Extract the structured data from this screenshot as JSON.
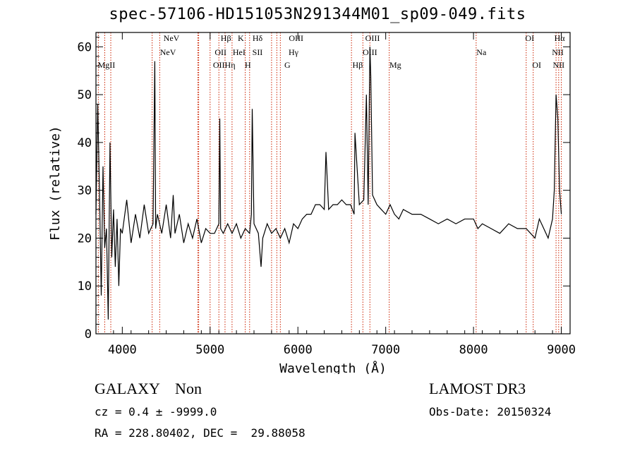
{
  "header": {
    "title": "spec-57106-HD151053N291344M01_sp09-049.fits"
  },
  "info": {
    "class_line": "GALAXY    Non",
    "survey": "LAMOST DR3",
    "cz_line": "cz = 0.4 ± -9999.0",
    "obs_date_line": "Obs-Date: 20150324",
    "radec_line": "RA = 228.80402, DEC =  29.88058"
  },
  "colors": {
    "line_marker": "#cc2200",
    "spectrum": "#000000"
  },
  "chart_data": {
    "type": "line",
    "title": "spec-57106-HD151053N291344M01_sp09-049.fits",
    "xlabel": "Wavelength (Å)",
    "ylabel": "Flux (relative)",
    "xlim": [
      3700,
      9100
    ],
    "ylim": [
      0,
      63
    ],
    "xticks": [
      4000,
      5000,
      6000,
      7000,
      8000,
      9000
    ],
    "yticks": [
      0,
      10,
      20,
      30,
      40,
      50,
      60
    ],
    "grid": false,
    "series": [
      {
        "x": [
          3700,
          3720,
          3740,
          3760,
          3780,
          3800,
          3820,
          3840,
          3860,
          3880,
          3900,
          3920,
          3940,
          3960,
          3980,
          4000,
          4050,
          4100,
          4150,
          4200,
          4250,
          4300,
          4350,
          4370,
          4380,
          4400,
          4450,
          4500,
          4550,
          4580,
          4600,
          4650,
          4700,
          4750,
          4800,
          4850,
          4900,
          4950,
          5000,
          5050,
          5100,
          5110,
          5120,
          5150,
          5200,
          5250,
          5300,
          5350,
          5400,
          5450,
          5470,
          5480,
          5500,
          5550,
          5580,
          5600,
          5650,
          5700,
          5750,
          5800,
          5850,
          5900,
          5950,
          6000,
          6050,
          6100,
          6150,
          6200,
          6250,
          6300,
          6320,
          6350,
          6400,
          6450,
          6500,
          6550,
          6600,
          6640,
          6650,
          6700,
          6750,
          6780,
          6800,
          6820,
          6830,
          6850,
          6900,
          6950,
          7000,
          7050,
          7100,
          7150,
          7200,
          7300,
          7400,
          7500,
          7600,
          7700,
          7800,
          7900,
          8000,
          8050,
          8100,
          8200,
          8300,
          8400,
          8500,
          8600,
          8650,
          8700,
          8750,
          8800,
          8850,
          8900,
          8920,
          8940,
          8960,
          8980,
          9000
        ],
        "y": [
          25,
          48,
          30,
          8,
          35,
          18,
          22,
          3,
          40,
          16,
          26,
          14,
          24,
          10,
          22,
          21,
          28,
          19,
          25,
          20,
          27,
          21,
          23,
          57,
          22,
          25,
          21,
          27,
          20,
          29,
          21,
          25,
          19,
          23,
          20,
          24,
          19,
          22,
          21,
          21,
          23,
          45,
          22,
          21,
          23,
          21,
          23,
          20,
          22,
          21,
          25,
          47,
          23,
          21,
          14,
          20,
          23,
          21,
          22,
          20,
          22,
          19,
          23,
          22,
          24,
          25,
          25,
          27,
          27,
          26,
          38,
          26,
          27,
          27,
          28,
          27,
          27,
          25,
          42,
          27,
          28,
          50,
          27,
          60,
          54,
          29,
          27,
          26,
          25,
          27,
          25,
          24,
          26,
          25,
          25,
          24,
          23,
          24,
          23,
          24,
          24,
          22,
          23,
          22,
          21,
          23,
          22,
          22,
          21,
          20,
          24,
          22,
          20,
          24,
          30,
          50,
          45,
          30,
          25
        ]
      }
    ],
    "line_markers": [
      {
        "wl": 3727,
        "labels": []
      },
      {
        "wl": 3800,
        "labels": [
          "MgII"
        ]
      },
      {
        "wl": 3869,
        "labels": []
      },
      {
        "wl": 4340,
        "labels": [
          "NeV"
        ]
      },
      {
        "wl": 4426,
        "labels": [
          "NeV"
        ]
      },
      {
        "wl": 4861,
        "labels": [
          "OII"
        ]
      },
      {
        "wl": 4870,
        "labels": [
          "OII"
        ]
      },
      {
        "wl": 5000,
        "labels": [
          "Hβ",
          "Hη"
        ]
      },
      {
        "wl": 5100,
        "labels": [
          "HeI"
        ]
      },
      {
        "wl": 5170,
        "labels": [
          "K"
        ]
      },
      {
        "wl": 5250,
        "labels": [
          "H"
        ]
      },
      {
        "wl": 5400,
        "labels": [
          "Hδ"
        ]
      },
      {
        "wl": 5450,
        "labels": [
          "SII"
        ]
      },
      {
        "wl": 5700,
        "labels": [
          "OIII"
        ]
      },
      {
        "wl": 5760,
        "labels": [
          "Hγ"
        ]
      },
      {
        "wl": 5800,
        "labels": [
          "G"
        ]
      },
      {
        "wl": 6610,
        "labels": [
          "Hβ"
        ]
      },
      {
        "wl": 6740,
        "labels": [
          "OIII"
        ]
      },
      {
        "wl": 6820,
        "labels": [
          "OIII"
        ]
      },
      {
        "wl": 7040,
        "labels": [
          "Mg"
        ]
      },
      {
        "wl": 8030,
        "labels": [
          "Na"
        ]
      },
      {
        "wl": 8600,
        "labels": [
          "OI"
        ]
      },
      {
        "wl": 8680,
        "labels": [
          "OI"
        ]
      },
      {
        "wl": 8940,
        "labels": [
          "Hα"
        ]
      },
      {
        "wl": 8970,
        "labels": [
          "NII"
        ]
      },
      {
        "wl": 9000,
        "labels": [
          "NII"
        ]
      }
    ],
    "marker_labels": [
      {
        "text": "NeV",
        "wl": 4560,
        "row": 0
      },
      {
        "text": "NeV",
        "wl": 4520,
        "row": 1
      },
      {
        "text": "Hβ",
        "wl": 5180,
        "row": 0
      },
      {
        "text": "K",
        "wl": 5350,
        "row": 0
      },
      {
        "text": "Hδ",
        "wl": 5540,
        "row": 0
      },
      {
        "text": "OIII",
        "wl": 5980,
        "row": 0
      },
      {
        "text": "OIII",
        "wl": 6850,
        "row": 0
      },
      {
        "text": "OI",
        "wl": 8640,
        "row": 0
      },
      {
        "text": "Hα",
        "wl": 8980,
        "row": 0
      },
      {
        "text": "MgII",
        "wl": 3820,
        "row": 2
      },
      {
        "text": "OII",
        "wl": 5120,
        "row": 1
      },
      {
        "text": "HeI",
        "wl": 5330,
        "row": 1
      },
      {
        "text": "SII",
        "wl": 5540,
        "row": 1
      },
      {
        "text": "Hγ",
        "wl": 5950,
        "row": 1
      },
      {
        "text": "OIII",
        "wl": 6820,
        "row": 1
      },
      {
        "text": "Na",
        "wl": 8090,
        "row": 1
      },
      {
        "text": "NII",
        "wl": 8960,
        "row": 1
      },
      {
        "text": "OIIHη",
        "wl": 5160,
        "row": 2
      },
      {
        "text": "H",
        "wl": 5430,
        "row": 2
      },
      {
        "text": "G",
        "wl": 5880,
        "row": 2
      },
      {
        "text": "Hβ",
        "wl": 6680,
        "row": 2
      },
      {
        "text": "Mg",
        "wl": 7110,
        "row": 2
      },
      {
        "text": "OI",
        "wl": 8720,
        "row": 2
      },
      {
        "text": "NII",
        "wl": 8970,
        "row": 2
      }
    ]
  }
}
